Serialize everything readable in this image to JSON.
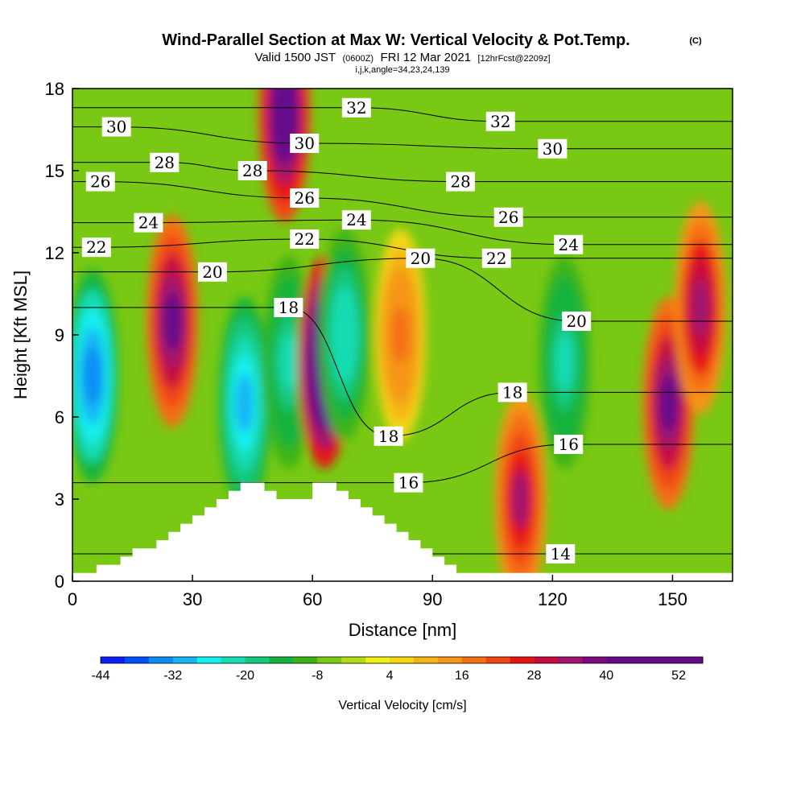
{
  "title": {
    "main": "Wind-Parallel Section at Max W: Vertical Velocity & Pot.Temp.",
    "copyright": "(C)",
    "valid_prefix": "Valid 1500 JST",
    "valid_utc": "(0600Z)",
    "valid_date": "FRI 12 Mar 2021",
    "forecast": "[12hrFcst@2209z]",
    "params": "i,j,k,angle=34,23,24,139"
  },
  "colors": {
    "palette": [
      "#0a1ef5",
      "#0050fa",
      "#0a8cf5",
      "#14b4f5",
      "#14f0f0",
      "#14dcb4",
      "#14c87d",
      "#14b43c",
      "#3cb414",
      "#78c814",
      "#b4dc14",
      "#f0f014",
      "#f5d714",
      "#f5b414",
      "#f59614",
      "#f56e14",
      "#f04614",
      "#e61414",
      "#c80a3c",
      "#a0146e",
      "#7d0a7d",
      "#640a8c"
    ],
    "background": "#78c814",
    "terrain": "#ffffff",
    "contour": "#000000"
  },
  "chart_data": {
    "type": "heatmap",
    "title": "Wind-Parallel Section at Max W: Vertical Velocity & Pot.Temp.",
    "xlabel": "Distance [nm]",
    "ylabel": "Height [Kft MSL]",
    "xlim": [
      0,
      165
    ],
    "ylim": [
      0,
      18
    ],
    "x_ticks": [
      "0",
      "30",
      "60",
      "90",
      "120",
      "150"
    ],
    "y_ticks": [
      "0",
      "3",
      "6",
      "9",
      "12",
      "15",
      "18"
    ],
    "colorbar": {
      "label": "Vertical Velocity [cm/s]",
      "levels": [
        -44,
        -40,
        -36,
        -32,
        -28,
        -24,
        -20,
        -16,
        -12,
        -8,
        -4,
        0,
        4,
        8,
        12,
        16,
        20,
        24,
        28,
        32,
        36,
        40,
        44,
        48,
        52,
        56
      ],
      "tick_labels": [
        "-44",
        "-32",
        "-20",
        "-8",
        "4",
        "16",
        "28",
        "40",
        "52"
      ]
    },
    "vertical_velocity_cells": [
      {
        "x": 5,
        "y": 7.5,
        "w": -36
      },
      {
        "x": 25,
        "y": 9.5,
        "w": 40
      },
      {
        "x": 43,
        "y": 6.5,
        "w": -32
      },
      {
        "x": 53,
        "y": 17,
        "w": 48
      },
      {
        "x": 54,
        "y": 8,
        "w": -22
      },
      {
        "x": 63,
        "y": 8,
        "w": 56
      },
      {
        "x": 68,
        "y": 9,
        "w": -24
      },
      {
        "x": 82,
        "y": 9,
        "w": 18
      },
      {
        "x": 112,
        "y": 3,
        "w": 32
      },
      {
        "x": 123,
        "y": 8,
        "w": -22
      },
      {
        "x": 149,
        "y": 6.5,
        "w": 40
      },
      {
        "x": 157,
        "y": 10,
        "w": 34
      }
    ],
    "theta_contour_labels": [
      {
        "value": "30",
        "x": 11,
        "y": 16.6
      },
      {
        "value": "32",
        "x": 71,
        "y": 17.3
      },
      {
        "value": "32",
        "x": 107,
        "y": 16.8
      },
      {
        "value": "28",
        "x": 23,
        "y": 15.3
      },
      {
        "value": "30",
        "x": 58,
        "y": 16
      },
      {
        "value": "30",
        "x": 120,
        "y": 15.8
      },
      {
        "value": "26",
        "x": 7,
        "y": 14.6
      },
      {
        "value": "28",
        "x": 45,
        "y": 15
      },
      {
        "value": "28",
        "x": 97,
        "y": 14.6
      },
      {
        "value": "26",
        "x": 58,
        "y": 14
      },
      {
        "value": "24",
        "x": 19,
        "y": 13.1
      },
      {
        "value": "24",
        "x": 71,
        "y": 13.2
      },
      {
        "value": "26",
        "x": 109,
        "y": 13.3
      },
      {
        "value": "22",
        "x": 6,
        "y": 12.2
      },
      {
        "value": "22",
        "x": 58,
        "y": 12.5
      },
      {
        "value": "20",
        "x": 87,
        "y": 11.8
      },
      {
        "value": "22",
        "x": 106,
        "y": 11.8
      },
      {
        "value": "24",
        "x": 124,
        "y": 12.3
      },
      {
        "value": "20",
        "x": 35,
        "y": 11.3
      },
      {
        "value": "18",
        "x": 54,
        "y": 10
      },
      {
        "value": "20",
        "x": 126,
        "y": 9.5
      },
      {
        "value": "18",
        "x": 110,
        "y": 6.9
      },
      {
        "value": "18",
        "x": 79,
        "y": 5.3
      },
      {
        "value": "16",
        "x": 124,
        "y": 5
      },
      {
        "value": "16",
        "x": 84,
        "y": 3.6
      },
      {
        "value": "14",
        "x": 122,
        "y": 1
      }
    ],
    "terrain_profile": [
      [
        0,
        0.3
      ],
      [
        6,
        0.3
      ],
      [
        6,
        0.6
      ],
      [
        12,
        0.6
      ],
      [
        12,
        0.9
      ],
      [
        15,
        0.9
      ],
      [
        15,
        1.2
      ],
      [
        21,
        1.2
      ],
      [
        21,
        1.5
      ],
      [
        24,
        1.5
      ],
      [
        24,
        1.8
      ],
      [
        27,
        1.8
      ],
      [
        27,
        2.1
      ],
      [
        30,
        2.1
      ],
      [
        30,
        2.4
      ],
      [
        33,
        2.4
      ],
      [
        33,
        2.7
      ],
      [
        36,
        2.7
      ],
      [
        36,
        3.0
      ],
      [
        39,
        3.0
      ],
      [
        39,
        3.3
      ],
      [
        42,
        3.3
      ],
      [
        42,
        3.6
      ],
      [
        48,
        3.6
      ],
      [
        48,
        3.3
      ],
      [
        51,
        3.3
      ],
      [
        51,
        3.0
      ],
      [
        60,
        3.0
      ],
      [
        60,
        3.6
      ],
      [
        66,
        3.6
      ],
      [
        66,
        3.3
      ],
      [
        69,
        3.3
      ],
      [
        69,
        3.0
      ],
      [
        72,
        3.0
      ],
      [
        72,
        2.7
      ],
      [
        75,
        2.7
      ],
      [
        75,
        2.4
      ],
      [
        78,
        2.4
      ],
      [
        78,
        2.1
      ],
      [
        81,
        2.1
      ],
      [
        81,
        1.8
      ],
      [
        84,
        1.8
      ],
      [
        84,
        1.5
      ],
      [
        87,
        1.5
      ],
      [
        87,
        1.2
      ],
      [
        90,
        1.2
      ],
      [
        90,
        0.9
      ],
      [
        93,
        0.9
      ],
      [
        93,
        0.6
      ],
      [
        96,
        0.6
      ],
      [
        96,
        0.3
      ],
      [
        165,
        0.3
      ]
    ]
  }
}
